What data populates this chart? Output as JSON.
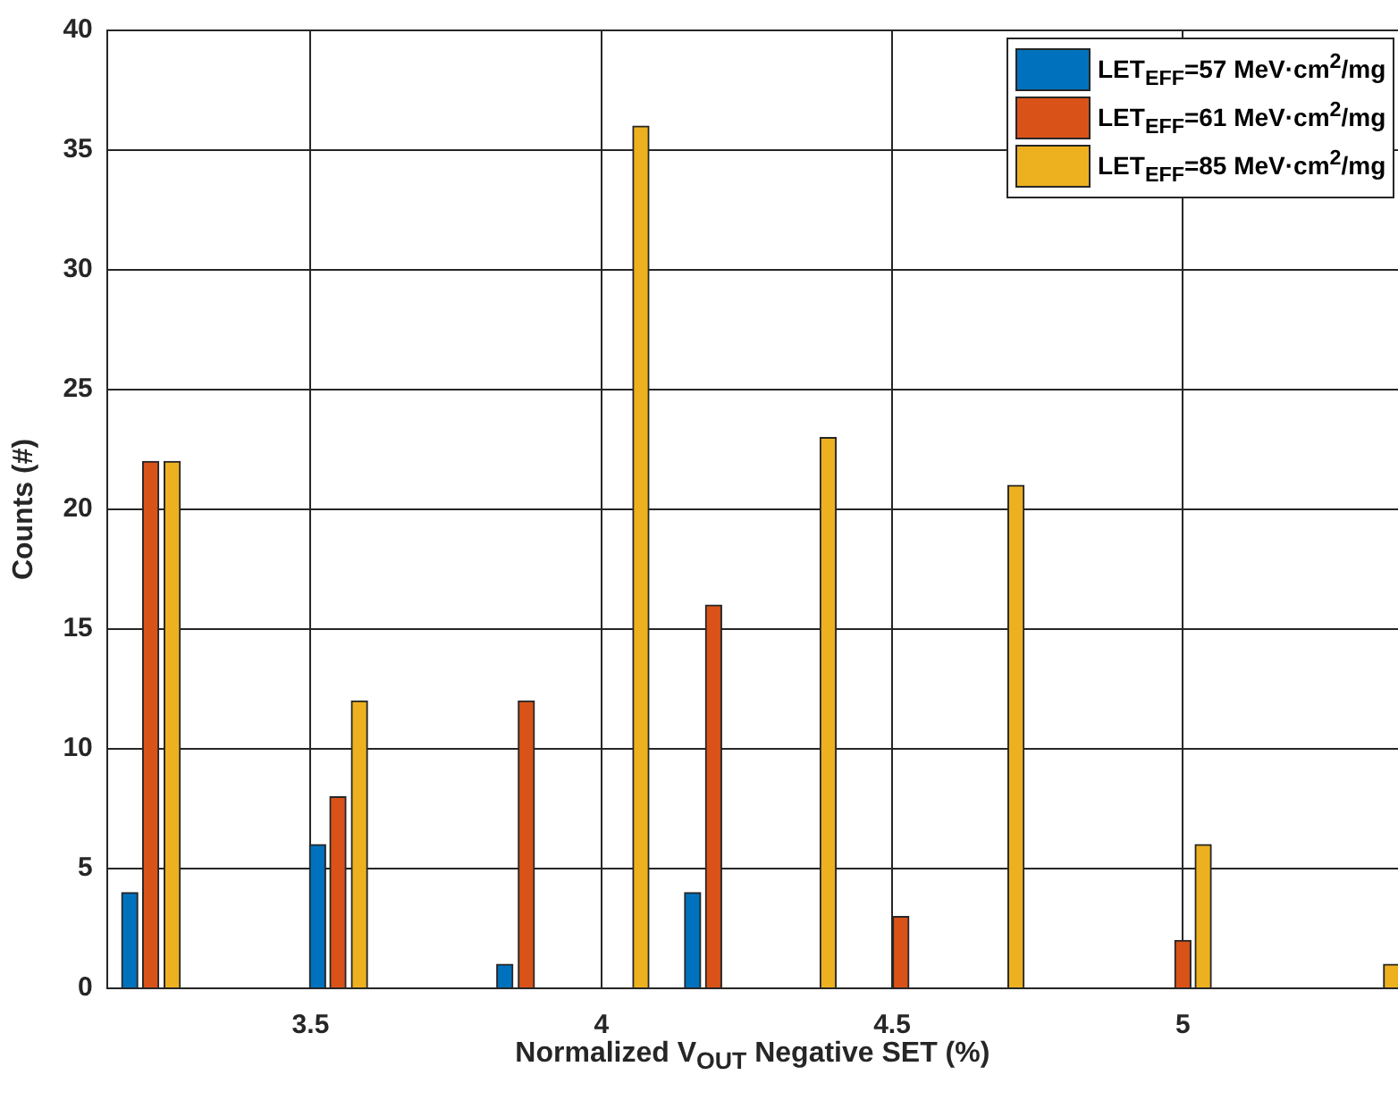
{
  "chart_data": {
    "type": "bar",
    "xlabel": "Normalized V$_{OUT}$ Negative SET (%)",
    "ylabel": "Counts (#)",
    "xlim": [
      3.15,
      5.37
    ],
    "xticks": [
      3.5,
      4,
      4.5,
      5
    ],
    "ylim": [
      0,
      40
    ],
    "yticks": [
      0,
      5,
      10,
      15,
      20,
      25,
      30,
      35,
      40
    ],
    "grid": true,
    "legend": "top right",
    "series": [
      {
        "name": "LET$_{EFF}$=57 MeV·cm$^{2}$/mg",
        "color": "#0072bd",
        "x": [
          3.189,
          3.512,
          3.834,
          4.157
        ],
        "values": [
          4,
          6,
          1,
          4
        ]
      },
      {
        "name": "LET$_{EFF}$=61 MeV·cm$^{2}$/mg",
        "color": "#d95319",
        "x": [
          3.225,
          3.547,
          3.871,
          4.193,
          4.515,
          5.0
        ],
        "values": [
          22,
          8,
          12,
          16,
          3,
          2
        ]
      },
      {
        "name": "LET$_{EFF}$=85 MeV·cm$^{2}$/mg",
        "color": "#edb120",
        "x": [
          3.262,
          3.584,
          4.068,
          4.39,
          4.713,
          5.035,
          5.359
        ],
        "values": [
          22,
          12,
          36,
          23,
          21,
          6,
          1
        ]
      }
    ]
  }
}
